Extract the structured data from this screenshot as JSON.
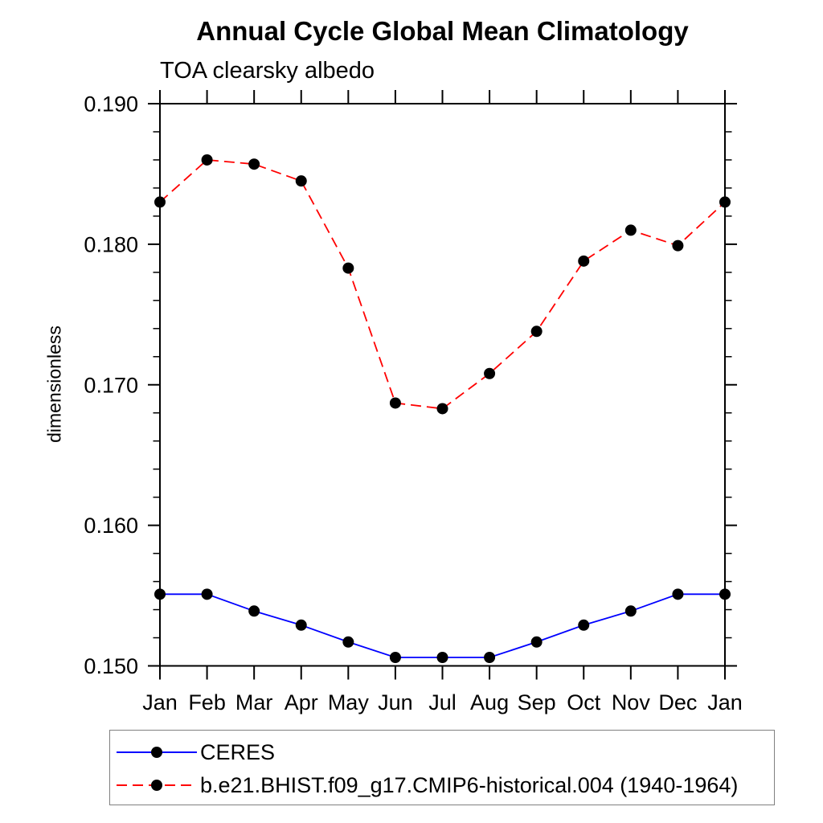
{
  "header": {
    "title": "Annual Cycle Global Mean Climatology",
    "subtitle": "TOA clearsky albedo"
  },
  "chart_data": {
    "type": "line",
    "title": "Annual Cycle Global Mean Climatology",
    "subtitle": "TOA clearsky albedo",
    "xlabel": "",
    "ylabel": "dimensionless",
    "categories": [
      "Jan",
      "Feb",
      "Mar",
      "Apr",
      "May",
      "Jun",
      "Jul",
      "Aug",
      "Sep",
      "Oct",
      "Nov",
      "Dec",
      "Jan"
    ],
    "ylim": [
      0.15,
      0.19
    ],
    "ytick_major": [
      0.15,
      0.16,
      0.17,
      0.18,
      0.19
    ],
    "ytick_labels": [
      "0.150",
      "0.160",
      "0.170",
      "0.180",
      "0.190"
    ],
    "ytick_minor_step": 0.002,
    "grid": false,
    "legend_position": "bottom-left-box",
    "series": [
      {
        "name": "CERES",
        "color": "#0000ff",
        "line_style": "solid",
        "marker": "circle",
        "marker_color": "#000000",
        "values": [
          0.1551,
          0.1551,
          0.1539,
          0.1529,
          0.1517,
          0.1506,
          0.1506,
          0.1506,
          0.1517,
          0.1529,
          0.1539,
          0.1551,
          0.1551
        ]
      },
      {
        "name": "b.e21.BHIST.f09_g17.CMIP6-historical.004 (1940-1964)",
        "color": "#ff0000",
        "line_style": "dashed",
        "marker": "circle",
        "marker_color": "#000000",
        "values": [
          0.183,
          0.186,
          0.1857,
          0.1845,
          0.1783,
          0.1687,
          0.1683,
          0.1708,
          0.1738,
          0.1788,
          0.181,
          0.1799,
          0.183
        ]
      }
    ],
    "axis_color": "#000000",
    "legend_border_color": "#808080"
  }
}
